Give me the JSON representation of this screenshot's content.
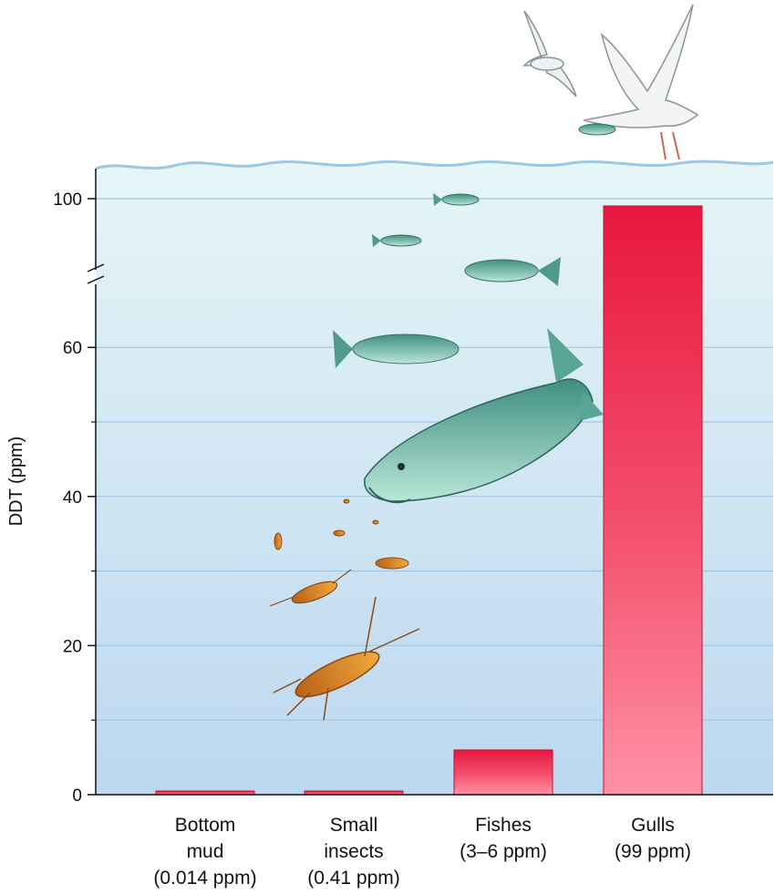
{
  "chart_data": {
    "type": "bar",
    "ylabel": "DDT (ppm)",
    "yticks": [
      0,
      20,
      40,
      60,
      100
    ],
    "axis_break": [
      70,
      95
    ],
    "ylim": [
      0,
      104
    ],
    "grid": true,
    "categories": [
      {
        "line1": "Bottom",
        "line2": "mud",
        "line3": "(0.014 ppm)"
      },
      {
        "line1": "Small",
        "line2": "insects",
        "line3": "(0.41 ppm)"
      },
      {
        "line1": "Fishes",
        "line2": "(3–6 ppm)",
        "line3": ""
      },
      {
        "line1": "Gulls",
        "line2": "(99 ppm)",
        "line3": ""
      }
    ],
    "values": [
      0.014,
      0.41,
      6,
      99
    ],
    "colors": {
      "bar": "#e8173f",
      "bar_light": "#ff8fa3",
      "water_top": "#e4f5f7",
      "water_bottom": "#bdd8ef",
      "grid": "#9fc7e6"
    }
  }
}
